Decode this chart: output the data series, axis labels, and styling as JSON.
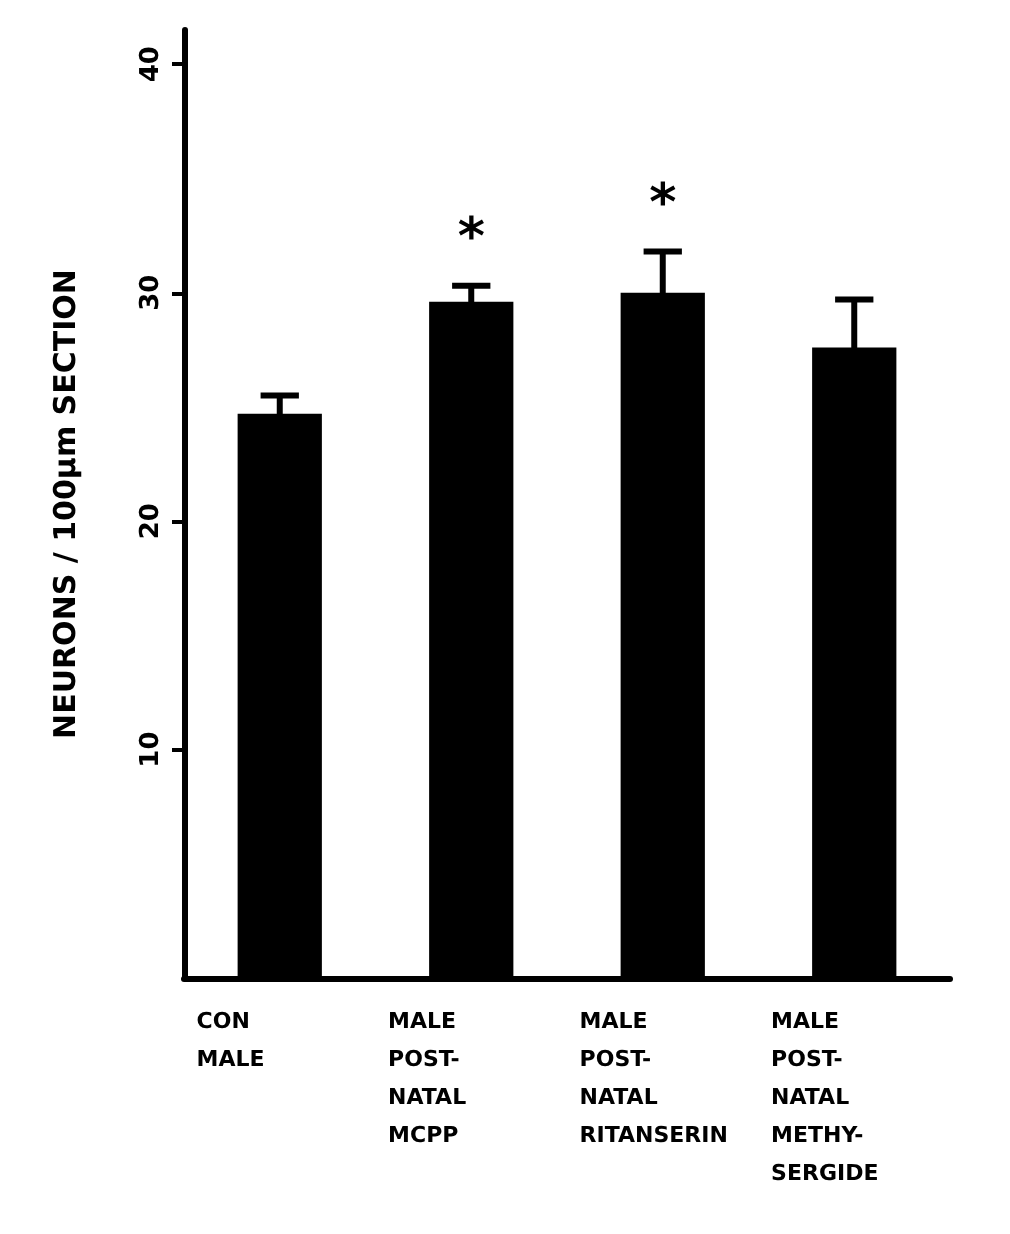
{
  "chart_data": {
    "type": "bar",
    "ylabel": "NEURONS / 100µm SECTION",
    "categories": [
      "CON\nMALE",
      "MALE\nPOST-\nNATAL\nMCPP",
      "MALE\nPOST-\nNATAL\nRITANSERIN",
      "MALE\nPOST-\nNATAL\nMETHY-\nSERGIDE"
    ],
    "values": [
      24.7,
      29.6,
      30.0,
      27.6
    ],
    "errors": [
      0.8,
      0.7,
      1.8,
      2.1
    ],
    "color": "#000000",
    "ylim": [
      0,
      41.5
    ],
    "yticks": [
      10,
      20,
      30,
      40
    ],
    "grid": false,
    "annotations": [
      {
        "text": "*",
        "x": "MALE\nPOST-\nNATAL\nMCPP",
        "y": 29.6
      },
      {
        "text": "*",
        "x": "MALE\nPOST-\nNATAL\nRITANSERIN",
        "y": 30.0
      }
    ]
  }
}
